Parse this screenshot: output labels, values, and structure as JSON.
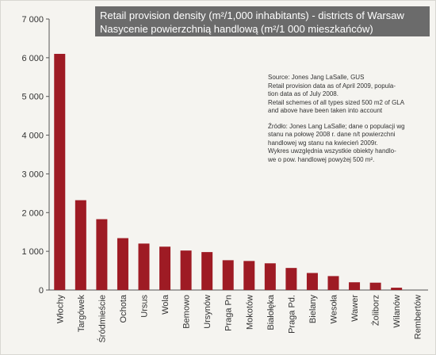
{
  "chart_data": {
    "type": "bar",
    "title_en": "Retail provision density (m²/1,000 inhabitants) - districts of Warsaw",
    "title_pl": "Nasycenie powierzchnią handlową (m²/1 000 mieszkańców)",
    "xlabel": "",
    "ylabel": "",
    "ylim": [
      0,
      7000
    ],
    "yticks": [
      0,
      1000,
      2000,
      3000,
      4000,
      5000,
      6000,
      7000
    ],
    "ytick_labels": [
      "0",
      "1 000",
      "2 000",
      "3 000",
      "4 000",
      "5 000",
      "6 000",
      "7 000"
    ],
    "grid": false,
    "bar_color": "#9e1b24",
    "categories": [
      "Włochy",
      "Targówek",
      "Śródmieście",
      "Ochota",
      "Ursus",
      "Wola",
      "Bemowo",
      "Ursynów",
      "Praga Pn",
      "Mokotów",
      "Białołęka",
      "Praga Pd.",
      "Bielany",
      "Wesoła",
      "Wawer",
      "Żoliborz",
      "Wilanów",
      "Rembertów"
    ],
    "values": [
      6100,
      2320,
      1830,
      1340,
      1200,
      1120,
      1020,
      980,
      770,
      750,
      690,
      570,
      440,
      360,
      200,
      190,
      60,
      0
    ]
  },
  "notes": {
    "en": [
      "Source: Jones Jang LaSalle, GUS",
      "Retail provision data as of April 2009, popula-",
      "tion data as of July 2008.",
      "Retail schemes of all types sized 500 m2 of GLA",
      "and above have been taken into account"
    ],
    "pl": [
      "Źródło: Jones Lang LaSalle; dane o populacji wg",
      "stanu na połowę 2008 r. dane n/t powierzchni",
      "handlowej wg stanu na kwiecień 2009r.",
      "Wykres uwzględnia wszystkie obiekty handlo-",
      "we o pow. handlowej powyżej 500 m²."
    ]
  }
}
